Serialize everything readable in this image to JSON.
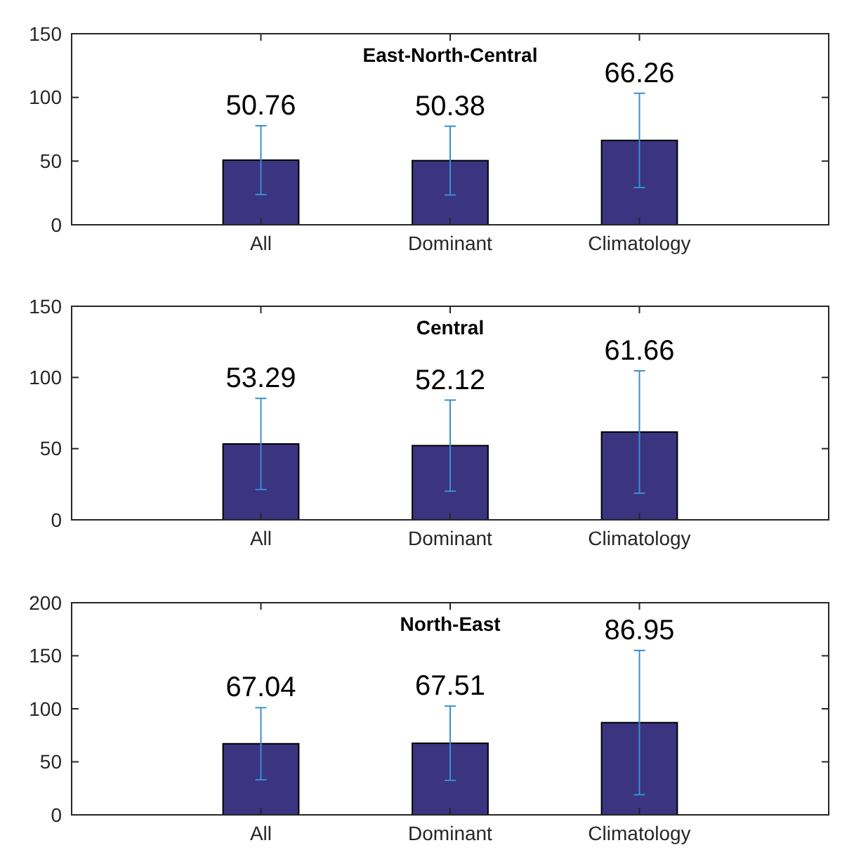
{
  "chart_data": [
    {
      "type": "bar",
      "title": "East-North-Central",
      "categories": [
        "All",
        "Dominant",
        "Climatology"
      ],
      "values": [
        50.76,
        50.38,
        66.26
      ],
      "errors": [
        27,
        27,
        37
      ],
      "color": "#3b3480",
      "ylim": [
        0,
        150
      ],
      "yticks": [
        0,
        50,
        100,
        150
      ],
      "data_labels": true,
      "grid": false
    },
    {
      "type": "bar",
      "title": "Central",
      "categories": [
        "All",
        "Dominant",
        "Climatology"
      ],
      "values": [
        53.29,
        52.12,
        61.66
      ],
      "errors": [
        32,
        32,
        43
      ],
      "color": "#3b3480",
      "ylim": [
        0,
        150
      ],
      "yticks": [
        0,
        50,
        100,
        150
      ],
      "data_labels": true,
      "grid": false
    },
    {
      "type": "bar",
      "title": "North-East",
      "categories": [
        "All",
        "Dominant",
        "Climatology"
      ],
      "values": [
        67.04,
        67.51,
        86.95
      ],
      "errors": [
        34,
        35,
        68
      ],
      "color": "#3b3480",
      "ylim": [
        0,
        200
      ],
      "yticks": [
        0,
        50,
        100,
        150,
        200
      ],
      "data_labels": true,
      "grid": false
    }
  ]
}
